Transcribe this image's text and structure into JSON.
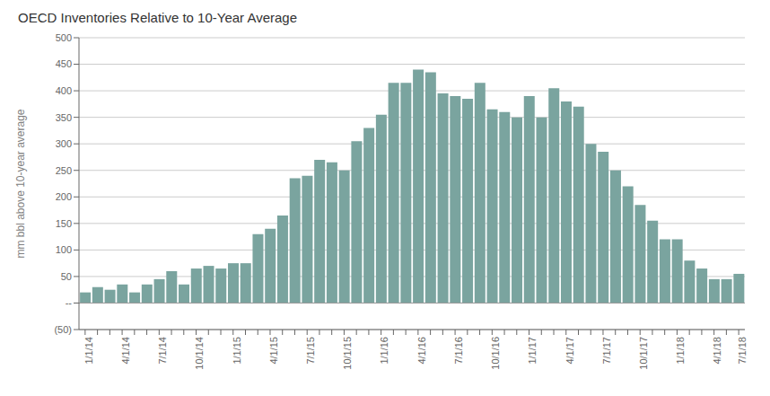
{
  "chart_data": {
    "type": "bar",
    "title": "OECD Inventories Relative to 10-Year Average",
    "ylabel": "mm bbl above 10-year average",
    "color": "#7aa49f",
    "categories": [
      "1/1/14",
      null,
      null,
      "4/1/14",
      null,
      null,
      "7/1/14",
      null,
      null,
      "10/1/14",
      null,
      null,
      "1/1/15",
      null,
      null,
      "4/1/15",
      null,
      null,
      "7/1/15",
      null,
      null,
      "10/1/15",
      null,
      null,
      "1/1/16",
      null,
      null,
      "4/1/16",
      null,
      null,
      "7/1/16",
      null,
      null,
      "10/1/16",
      null,
      null,
      "1/1/17",
      null,
      null,
      "4/1/17",
      null,
      null,
      "7/1/17",
      null,
      null,
      "10/1/17",
      null,
      null,
      "1/1/18",
      null,
      null,
      "4/1/18",
      null,
      "7/1/18"
    ],
    "values": [
      20,
      30,
      25,
      35,
      20,
      35,
      45,
      60,
      35,
      65,
      70,
      65,
      75,
      75,
      130,
      140,
      165,
      235,
      240,
      270,
      265,
      250,
      305,
      330,
      355,
      415,
      415,
      440,
      435,
      395,
      390,
      385,
      415,
      365,
      360,
      350,
      390,
      350,
      405,
      380,
      370,
      300,
      285,
      250,
      220,
      185,
      155,
      120,
      120,
      80,
      65,
      45,
      45,
      55
    ],
    "ylim": [
      -50,
      500
    ],
    "yticks": [
      500,
      450,
      400,
      350,
      300,
      250,
      200,
      150,
      100,
      50,
      {
        "value": 0,
        "label": "--"
      },
      {
        "value": -50,
        "label": "(50)"
      }
    ],
    "grid": true
  }
}
